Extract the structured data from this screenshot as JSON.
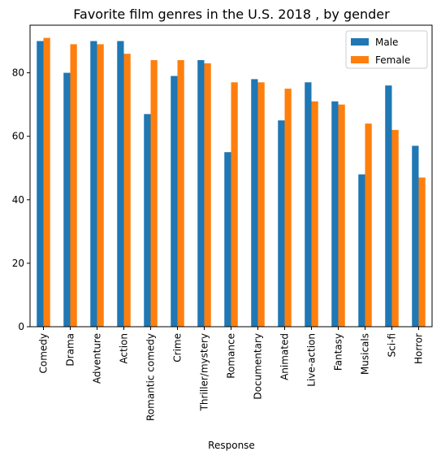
{
  "chart_data": {
    "type": "bar",
    "title": "Favorite film genres in the U.S. 2018 , by gender",
    "xlabel": "Response",
    "ylabel": "",
    "ylim": [
      0,
      95
    ],
    "yticks": [
      0,
      20,
      40,
      60,
      80
    ],
    "categories": [
      "Comedy",
      "Drama",
      "Adventure",
      "Action",
      "Romantic comedy",
      "Crime",
      "Thriller/mystery",
      "Romance",
      "Documentary",
      "Animated",
      "Live-action",
      "Fantasy",
      "Musicals",
      "Sci-fi",
      "Horror"
    ],
    "series": [
      {
        "name": "Male",
        "color": "#1f77b4",
        "values": [
          90,
          80,
          90,
          90,
          67,
          79,
          84,
          55,
          78,
          65,
          77,
          71,
          48,
          76,
          57
        ]
      },
      {
        "name": "Female",
        "color": "#ff7f0e",
        "values": [
          91,
          89,
          89,
          86,
          84,
          84,
          83,
          77,
          77,
          75,
          71,
          70,
          64,
          62,
          47
        ]
      }
    ],
    "legend_position": "top-right",
    "grid": false
  }
}
